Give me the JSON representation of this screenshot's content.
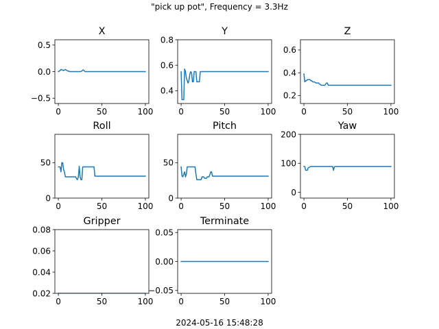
{
  "title": "\"pick up pot\", Frequency = 3.3Hz",
  "footer": "2024-05-16 15:48:28",
  "colors": {
    "line": "#1f77b4",
    "axes": "#000000",
    "background": "#ffffff"
  },
  "chart_data": [
    {
      "type": "line",
      "title": "X",
      "xlim": [
        -4,
        104
      ],
      "xticks": [
        0,
        50,
        100
      ],
      "ylim": [
        -0.6,
        0.6
      ],
      "yticks": [
        -0.5,
        0.0,
        0.5
      ],
      "ytick_labels": [
        "−0.5",
        "0.0",
        "0.5"
      ],
      "x": [
        0,
        2,
        3,
        5,
        6,
        8,
        9,
        10,
        11,
        12,
        13,
        14,
        15,
        25,
        27,
        28,
        29,
        30,
        31,
        40,
        100
      ],
      "y": [
        0,
        0.02,
        0.04,
        0.03,
        0.02,
        0.04,
        0.03,
        0.02,
        0.01,
        0.01,
        0.0,
        0.0,
        0.0,
        0.0,
        0.01,
        0.03,
        0.03,
        0.01,
        0.0,
        0.0,
        0.0
      ]
    },
    {
      "type": "line",
      "title": "Y",
      "xlim": [
        -4,
        104
      ],
      "xticks": [
        0,
        50,
        100
      ],
      "ylim": [
        0.3,
        0.8
      ],
      "yticks": [
        0.4,
        0.6,
        0.8
      ],
      "ytick_labels": [
        "0.4",
        "0.6",
        "0.8"
      ],
      "x": [
        0,
        1,
        2,
        3,
        4,
        5,
        6,
        7,
        8,
        9,
        10,
        11,
        12,
        13,
        14,
        15,
        16,
        17,
        18,
        19,
        20,
        21,
        22,
        23,
        24,
        25,
        26,
        30,
        100
      ],
      "y": [
        0.55,
        0.33,
        0.33,
        0.33,
        0.57,
        0.55,
        0.5,
        0.48,
        0.46,
        0.48,
        0.53,
        0.55,
        0.54,
        0.47,
        0.47,
        0.55,
        0.55,
        0.55,
        0.47,
        0.47,
        0.47,
        0.47,
        0.55,
        0.55,
        0.55,
        0.55,
        0.55,
        0.55,
        0.55
      ]
    },
    {
      "type": "line",
      "title": "Z",
      "xlim": [
        -4,
        104
      ],
      "xticks": [
        0,
        50,
        100
      ],
      "ylim": [
        0.13,
        0.69
      ],
      "yticks": [
        0.2,
        0.4,
        0.6
      ],
      "ytick_labels": [
        "0.2",
        "0.4",
        "0.6"
      ],
      "x": [
        0,
        1,
        2,
        3,
        4,
        5,
        6,
        7,
        8,
        9,
        10,
        12,
        14,
        15,
        17,
        18,
        20,
        22,
        24,
        26,
        27,
        28,
        30,
        35,
        100
      ],
      "y": [
        0.39,
        0.32,
        0.33,
        0.33,
        0.34,
        0.34,
        0.34,
        0.34,
        0.33,
        0.33,
        0.32,
        0.32,
        0.31,
        0.31,
        0.31,
        0.3,
        0.29,
        0.29,
        0.29,
        0.31,
        0.31,
        0.29,
        0.29,
        0.29,
        0.29
      ]
    },
    {
      "type": "line",
      "title": "Roll",
      "xlim": [
        -4,
        104
      ],
      "xticks": [
        0,
        50,
        100
      ],
      "ylim": [
        0,
        90
      ],
      "yticks": [
        0,
        50
      ],
      "ytick_labels": [
        "0",
        "50"
      ],
      "x": [
        0,
        2,
        3,
        4,
        5,
        6,
        7,
        8,
        9,
        10,
        20,
        21,
        22,
        23,
        24,
        25,
        26,
        27,
        28,
        29,
        30,
        31,
        32,
        33,
        34,
        35,
        36,
        37,
        38,
        39,
        40,
        41,
        42,
        43,
        100
      ],
      "y": [
        44,
        44,
        37,
        50,
        50,
        40,
        37,
        30,
        30,
        30,
        30,
        27,
        26,
        30,
        45,
        30,
        26,
        26,
        44,
        44,
        44,
        44,
        44,
        44,
        44,
        44,
        44,
        44,
        44,
        44,
        44,
        44,
        31,
        31,
        31
      ]
    },
    {
      "type": "line",
      "title": "Pitch",
      "xlim": [
        -4,
        104
      ],
      "xticks": [
        0,
        50,
        100
      ],
      "ylim": [
        0,
        90
      ],
      "yticks": [
        0,
        50
      ],
      "ytick_labels": [
        "0",
        "50"
      ],
      "x": [
        0,
        1,
        2,
        3,
        4,
        5,
        6,
        7,
        8,
        9,
        10,
        11,
        12,
        13,
        14,
        15,
        16,
        17,
        18,
        19,
        20,
        21,
        22,
        23,
        24,
        25,
        26,
        27,
        28,
        29,
        30,
        31,
        32,
        33,
        34,
        35,
        36,
        37,
        38,
        100
      ],
      "y": [
        44,
        31,
        30,
        34,
        37,
        30,
        34,
        44,
        44,
        44,
        44,
        44,
        44,
        44,
        44,
        44,
        44,
        34,
        26,
        26,
        26,
        26,
        26,
        26,
        30,
        30,
        30,
        28,
        28,
        28,
        30,
        30,
        30,
        33,
        37,
        37,
        31,
        31,
        31,
        31
      ]
    },
    {
      "type": "line",
      "title": "Yaw",
      "xlim": [
        -4,
        104
      ],
      "xticks": [
        0,
        50,
        100
      ],
      "ylim": [
        -20,
        200
      ],
      "yticks": [
        0,
        100,
        200
      ],
      "ytick_labels": [
        "0",
        "100",
        "200"
      ],
      "x": [
        0,
        1,
        2,
        3,
        4,
        5,
        6,
        7,
        8,
        9,
        10,
        32,
        33,
        34,
        35,
        36,
        100
      ],
      "y": [
        89,
        89,
        76,
        76,
        76,
        85,
        86,
        88,
        89,
        89,
        89,
        89,
        89,
        76,
        88,
        89,
        89
      ]
    },
    {
      "type": "line",
      "title": "Gripper",
      "xlim": [
        -4,
        104
      ],
      "xticks": [
        0,
        50,
        100
      ],
      "ylim": [
        0.02,
        0.08
      ],
      "yticks": [
        0.02,
        0.04,
        0.06,
        0.08
      ],
      "ytick_labels": [
        "0.02",
        "0.04",
        "0.06",
        "0.08"
      ],
      "x": [
        0,
        100
      ],
      "y": [
        0.02,
        0.02
      ]
    },
    {
      "type": "line",
      "title": "Terminate",
      "xlim": [
        -4,
        104
      ],
      "xticks": [
        0,
        50,
        100
      ],
      "ylim": [
        -0.055,
        0.055
      ],
      "yticks": [
        -0.05,
        0.0,
        0.05
      ],
      "ytick_labels": [
        "−0.05",
        "0.00",
        "0.05"
      ],
      "x": [
        0,
        100
      ],
      "y": [
        0,
        0
      ]
    }
  ]
}
